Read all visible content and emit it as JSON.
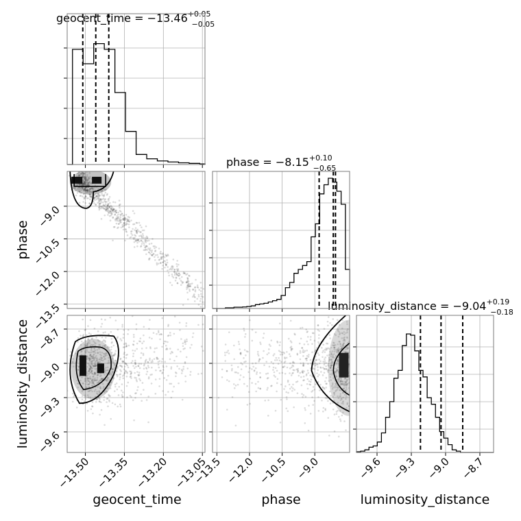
{
  "chart_data": {
    "type": "corner",
    "parameters": [
      "geocent_time",
      "phase",
      "luminosity_distance"
    ],
    "titles": [
      {
        "text": "geocent_time = −13.46",
        "plus": "+0.05",
        "minus": "−0.05"
      },
      {
        "text": "phase = −8.15",
        "plus": "+0.10",
        "minus": "−0.65"
      },
      {
        "text": "luminosity_distance = −9.04",
        "plus": "+0.19",
        "minus": "−0.18"
      }
    ],
    "axes": {
      "geocent_time": {
        "range": [
          -13.57,
          -13.04
        ],
        "ticks": [
          -13.5,
          -13.35,
          -13.2,
          -13.05
        ],
        "tick_labels": [
          "−13.50",
          "−13.35",
          "−13.20",
          "−13.05"
        ]
      },
      "phase": {
        "range": [
          -13.7,
          -7.4
        ],
        "ticks": [
          -13.5,
          -12.0,
          -10.5,
          -9.0
        ],
        "tick_labels": [
          "−13.5",
          "−12.0",
          "−10.5",
          "−9.0"
        ]
      },
      "luminosity_distance": {
        "range": [
          -9.78,
          -8.58
        ],
        "ticks": [
          -9.6,
          -9.3,
          -9.0,
          -8.7
        ],
        "tick_labels": [
          "−9.6",
          "−9.3",
          "−9.0",
          "−8.7"
        ]
      }
    },
    "quantiles": {
      "geocent_time": [
        -13.51,
        -13.46,
        -13.41
      ],
      "phase": [
        -8.8,
        -8.15,
        -8.05
      ],
      "luminosity_distance": [
        -9.22,
        -9.04,
        -8.85
      ]
    },
    "histograms": {
      "geocent_time": {
        "edges_start": -13.57,
        "bin_width": 0.0204,
        "counts": [
          0,
          0.8,
          0.8,
          0.7,
          0.7,
          0.84,
          0.84,
          0.8,
          0.8,
          0.5,
          0.5,
          0.23,
          0.23,
          0.07,
          0.07,
          0.04,
          0.04,
          0.025,
          0.025,
          0.018,
          0.018,
          0.012,
          0.012,
          0.008,
          0.008,
          0.004
        ]
      },
      "phase": {
        "edges_start": -13.7,
        "bin_width": 0.197,
        "counts": [
          0,
          0,
          0,
          0.005,
          0.005,
          0.01,
          0.01,
          0.012,
          0.015,
          0.02,
          0.03,
          0.035,
          0.04,
          0.05,
          0.06,
          0.07,
          0.1,
          0.16,
          0.2,
          0.27,
          0.3,
          0.33,
          0.36,
          0.55,
          0.65,
          0.88,
          0.95,
          1.0,
          0.97,
          0.9,
          0.8,
          0.3
        ]
      },
      "luminosity_distance": {
        "edges_start": -9.78,
        "bin_width": 0.0364,
        "counts": [
          0.005,
          0.01,
          0.02,
          0.04,
          0.05,
          0.08,
          0.15,
          0.27,
          0.39,
          0.57,
          0.63,
          0.82,
          0.91,
          0.9,
          0.78,
          0.63,
          0.58,
          0.42,
          0.37,
          0.27,
          0.16,
          0.11,
          0.06,
          0.02,
          0.01,
          0.0,
          0.0,
          0.0,
          0.0,
          0.0,
          0.0,
          0.0,
          0.0
        ]
      }
    },
    "grid": true
  }
}
